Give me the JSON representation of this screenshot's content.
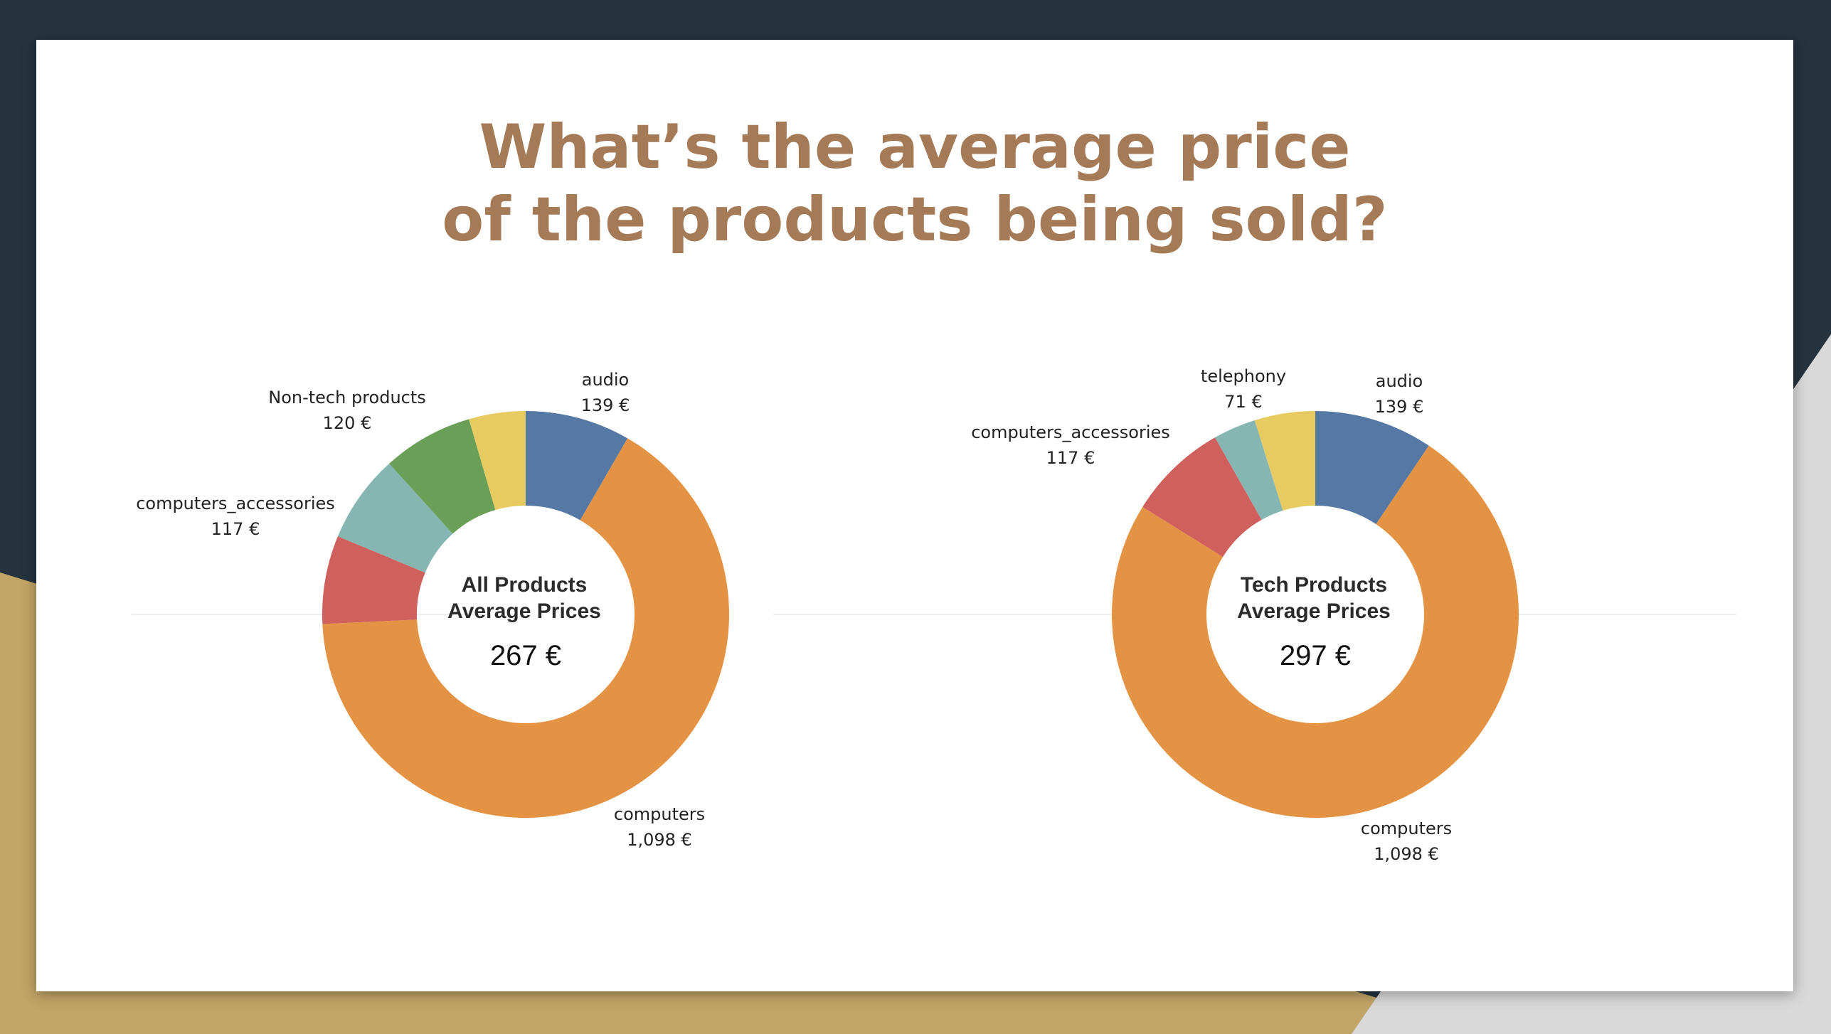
{
  "slide": {
    "title_line1": "What’s the average price",
    "title_line2": "of the products being sold?"
  },
  "colors": {
    "background_dark": "#25333f",
    "background_gold": "#c1a467",
    "background_light": "#d9d9d9",
    "title": "#a57b57"
  },
  "chart_data": [
    {
      "type": "pie",
      "variant": "donut",
      "center_title_line1": "All Products",
      "center_title_line2": "Average Prices",
      "center_value": "267 €",
      "slices": [
        {
          "label": "audio",
          "value": 139,
          "value_label": "139 €",
          "color": "#5578a4"
        },
        {
          "label": "computers",
          "value": 1098,
          "value_label": "1,098 €",
          "color": "#e49243"
        },
        {
          "label": "",
          "value": 117,
          "value_label": "",
          "color": "#d0605e"
        },
        {
          "label": "computers_accessories",
          "value": 117,
          "value_label": "117 €",
          "color": "#85b6b2"
        },
        {
          "label": "Non-tech products",
          "value": 120,
          "value_label": "120 €",
          "color": "#6a9f58"
        },
        {
          "label": "",
          "value": 75,
          "value_label": "",
          "color": "#e7ca60"
        }
      ]
    },
    {
      "type": "pie",
      "variant": "donut",
      "center_title_line1": "Tech Products",
      "center_title_line2": "Average Prices",
      "center_value": "297 €",
      "slices": [
        {
          "label": "audio",
          "value": 139,
          "value_label": "139 €",
          "color": "#5578a4"
        },
        {
          "label": "computers",
          "value": 1098,
          "value_label": "1,098 €",
          "color": "#e49243"
        },
        {
          "label": "computers_accessories",
          "value": 117,
          "value_label": "117 €",
          "color": "#d0605e"
        },
        {
          "label": "",
          "value": 50,
          "value_label": "",
          "color": "#85b6b2"
        },
        {
          "label": "telephony",
          "value": 71,
          "value_label": "71 €",
          "color": "#e7ca60"
        }
      ]
    }
  ]
}
